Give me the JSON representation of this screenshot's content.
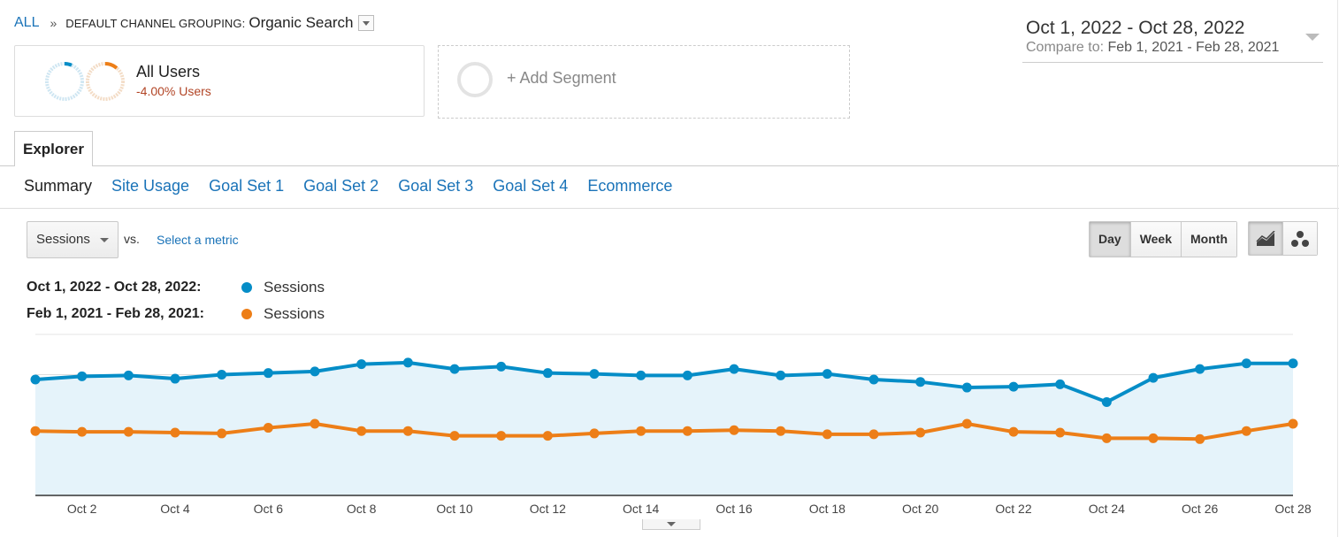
{
  "breadcrumb": {
    "all": "ALL",
    "separator": "»",
    "dimension": "DEFAULT CHANNEL GROUPING:",
    "value": "Organic Search"
  },
  "segments": {
    "primary": {
      "label": "All Users",
      "change": "-4.00% Users"
    },
    "add_label": "+ Add Segment"
  },
  "date": {
    "range": "Oct 1, 2022 - Oct 28, 2022",
    "compare_prefix": "Compare to:",
    "compare_range": "Feb 1, 2021 - Feb 28, 2021"
  },
  "tabs": {
    "explorer": "Explorer"
  },
  "subnav": [
    "Summary",
    "Site Usage",
    "Goal Set 1",
    "Goal Set 2",
    "Goal Set 3",
    "Goal Set 4",
    "Ecommerce"
  ],
  "controls": {
    "metric": "Sessions",
    "vs": "vs.",
    "select_metric": "Select a metric",
    "granularity": [
      "Day",
      "Week",
      "Month"
    ],
    "active_granularity": "Day"
  },
  "legend": {
    "series1_label": "Oct 1, 2022 - Oct 28, 2022:",
    "series1_name": "Sessions",
    "series2_label": "Feb 1, 2021 - Feb 28, 2021:",
    "series2_name": "Sessions"
  },
  "colors": {
    "series1": "#058dc7",
    "series2": "#ed7e17",
    "link": "#1a73b8",
    "fill": "#e5f3fa"
  },
  "chart_data": {
    "type": "line",
    "x": [
      1,
      2,
      3,
      4,
      5,
      6,
      7,
      8,
      9,
      10,
      11,
      12,
      13,
      14,
      15,
      16,
      17,
      18,
      19,
      20,
      21,
      22,
      23,
      24,
      25,
      26,
      27,
      28
    ],
    "xtick_labels": [
      "Oct 2",
      "Oct 4",
      "Oct 6",
      "Oct 8",
      "Oct 10",
      "Oct 12",
      "Oct 14",
      "Oct 16",
      "Oct 18",
      "Oct 20",
      "Oct 22",
      "Oct 24",
      "Oct 26",
      "Oct 28"
    ],
    "xtick_positions": [
      2,
      4,
      6,
      8,
      10,
      12,
      14,
      16,
      18,
      20,
      22,
      24,
      26,
      28
    ],
    "ylim": [
      0,
      100
    ],
    "grid": true,
    "series": [
      {
        "name": "Sessions",
        "values": [
          72,
          74,
          74.5,
          72.5,
          75,
          76,
          77,
          81.5,
          82.5,
          78.5,
          80,
          76,
          75.5,
          74.5,
          74.5,
          78.5,
          74.5,
          75.5,
          72,
          70.5,
          67,
          67.5,
          69,
          58,
          73,
          78.5,
          82,
          82
        ],
        "fill": true
      },
      {
        "name": "Sessions",
        "values": [
          40,
          39.5,
          39.5,
          39,
          38.5,
          42,
          44.5,
          40,
          40,
          37,
          37,
          37,
          38.5,
          40,
          40,
          40.5,
          40,
          38,
          38,
          39,
          44.5,
          39.5,
          39,
          35.5,
          35.5,
          35,
          40,
          44.5
        ],
        "fill": false
      }
    ]
  }
}
